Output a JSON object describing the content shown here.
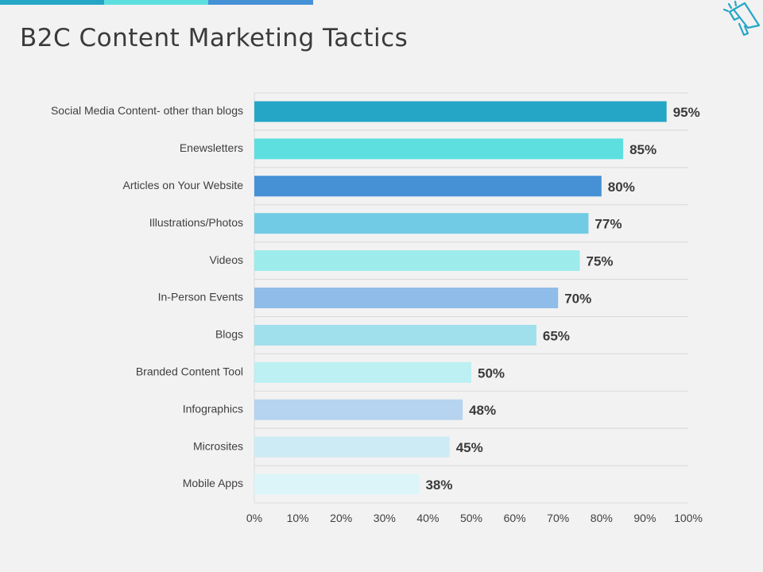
{
  "slide": {
    "title": "B2C Content Marketing Tactics",
    "stripe_colors": [
      "#25a6c6",
      "#5ddfe0",
      "#4691d6"
    ],
    "icon": "megaphone-icon"
  },
  "chart_data": {
    "type": "bar",
    "orientation": "horizontal",
    "categories": [
      "Social Media Content- other than blogs",
      "Enewsletters",
      "Articles on Your Website",
      "Illustrations/Photos",
      "Videos",
      "In-Person Events",
      "Blogs",
      "Branded Content Tool",
      "Infographics",
      "Microsites",
      "Mobile Apps"
    ],
    "values": [
      95,
      85,
      80,
      77,
      75,
      70,
      65,
      50,
      48,
      45,
      38
    ],
    "value_labels": [
      "95%",
      "85%",
      "80%",
      "77%",
      "75%",
      "70%",
      "65%",
      "50%",
      "48%",
      "45%",
      "38%"
    ],
    "bar_colors": [
      "#25a6c6",
      "#5ddfe0",
      "#4691d6",
      "#72cbe4",
      "#9eebec",
      "#8fbce8",
      "#a0dfec",
      "#bcf0f2",
      "#b6d3ef",
      "#cdebf4",
      "#dbf5f8"
    ],
    "xlim": [
      0,
      100
    ],
    "xticks": [
      0,
      10,
      20,
      30,
      40,
      50,
      60,
      70,
      80,
      90,
      100
    ],
    "xtick_labels": [
      "0%",
      "10%",
      "20%",
      "30%",
      "40%",
      "50%",
      "60%",
      "70%",
      "80%",
      "90%",
      "100%"
    ],
    "grid": true
  }
}
